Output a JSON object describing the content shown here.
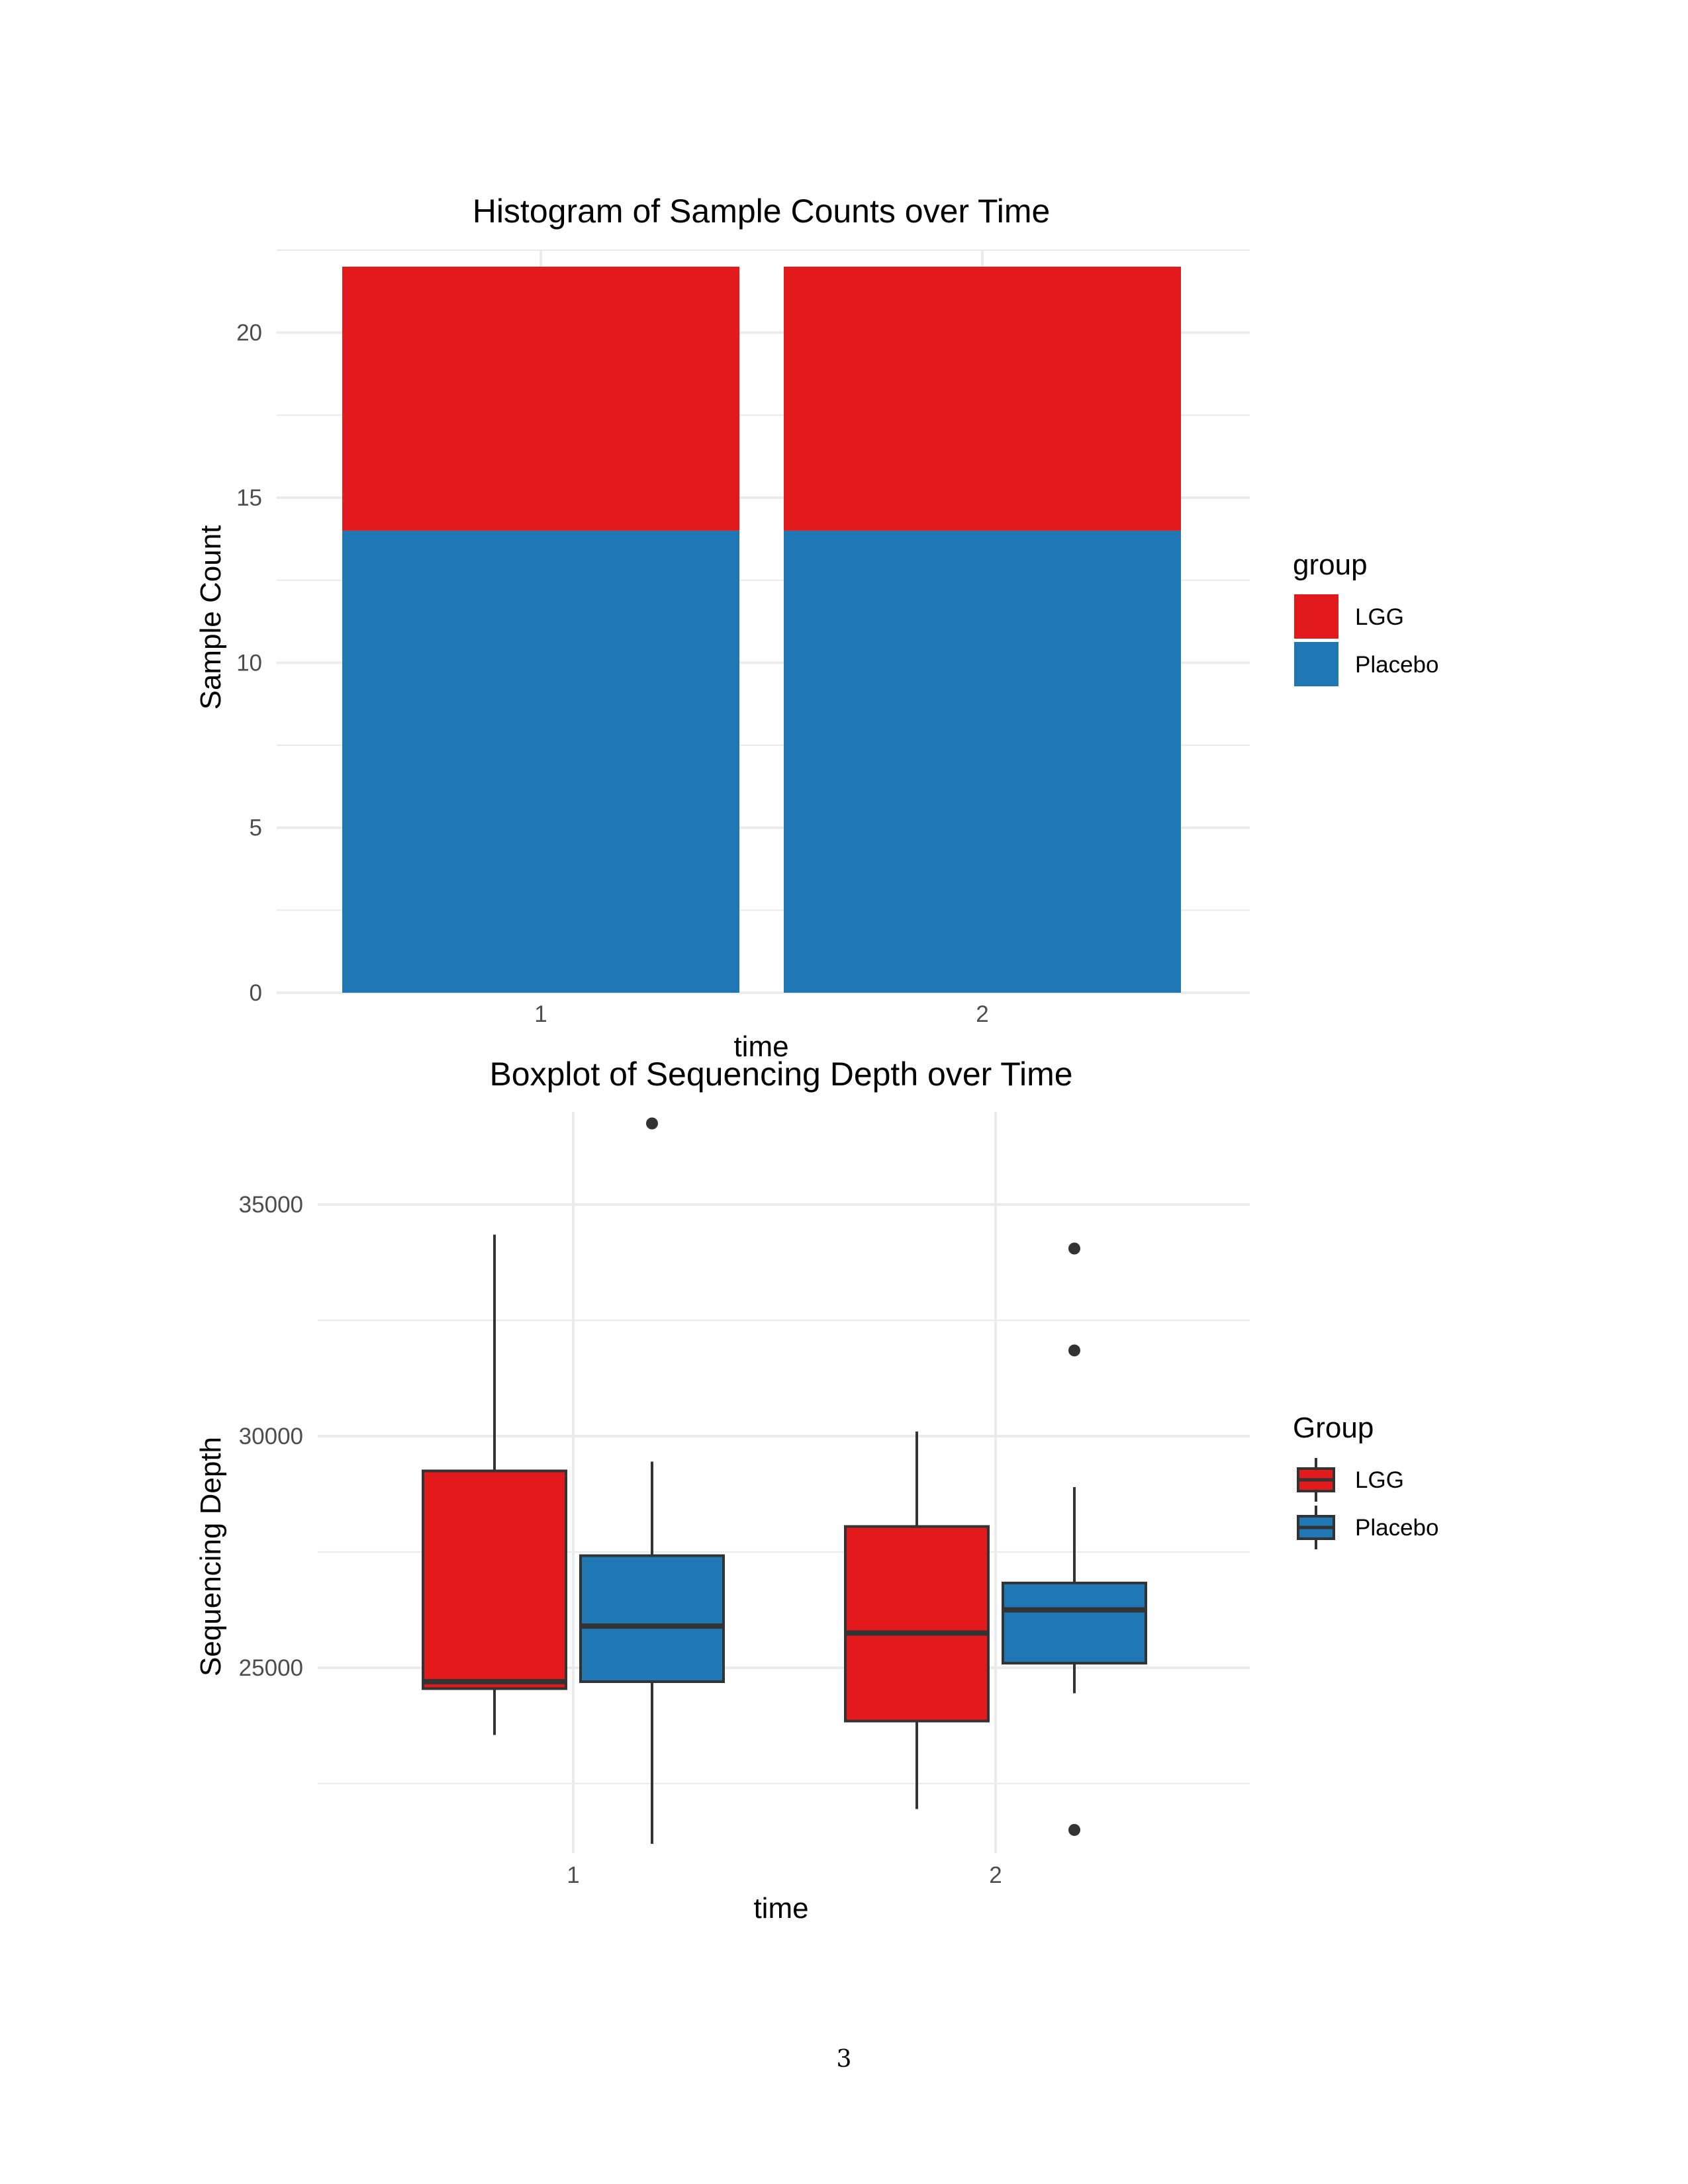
{
  "page_number": "3",
  "chart_data": [
    {
      "type": "bar",
      "stacked": true,
      "title": "Histogram of Sample Counts over Time",
      "xlabel": "time",
      "ylabel": "Sample Count",
      "categories": [
        "1",
        "2"
      ],
      "series": [
        {
          "name": "LGG",
          "color": "#e31a1c",
          "values": [
            8,
            8
          ]
        },
        {
          "name": "Placebo",
          "color": "#1f78b4",
          "values": [
            14,
            14
          ]
        }
      ],
      "ylim": [
        0,
        22.5
      ],
      "yticks": [
        0,
        5,
        10,
        15,
        20
      ],
      "grid": true,
      "legend": {
        "title": "group",
        "position": "right",
        "labels": [
          "LGG",
          "Placebo"
        ]
      }
    },
    {
      "type": "boxplot",
      "title": "Boxplot of Sequencing Depth over Time",
      "xlabel": "time",
      "ylabel": "Sequencing Depth",
      "categories": [
        "1",
        "2"
      ],
      "series": [
        {
          "name": "LGG",
          "color": "#e31a1c",
          "boxes": [
            {
              "x": "1",
              "whisker_low": 23550,
              "q1": 24550,
              "median": 24700,
              "q3": 29250,
              "whisker_high": 34350,
              "outliers": []
            },
            {
              "x": "2",
              "whisker_low": 21950,
              "q1": 23850,
              "median": 25750,
              "q3": 28050,
              "whisker_high": 30100,
              "outliers": []
            }
          ]
        },
        {
          "name": "Placebo",
          "color": "#1f78b4",
          "boxes": [
            {
              "x": "1",
              "whisker_low": 21200,
              "q1": 24700,
              "median": 25900,
              "q3": 27420,
              "whisker_high": 29450,
              "outliers": [
                36750
              ]
            },
            {
              "x": "2",
              "whisker_low": 24450,
              "q1": 25100,
              "median": 26250,
              "q3": 26830,
              "whisker_high": 28900,
              "outliers": [
                34050,
                31850,
                21500
              ]
            }
          ]
        }
      ],
      "ylim": [
        21000,
        37000
      ],
      "yticks": [
        25000,
        30000,
        35000
      ],
      "grid": true,
      "legend": {
        "title": "Group",
        "position": "right",
        "labels": [
          "LGG",
          "Placebo"
        ]
      }
    }
  ]
}
